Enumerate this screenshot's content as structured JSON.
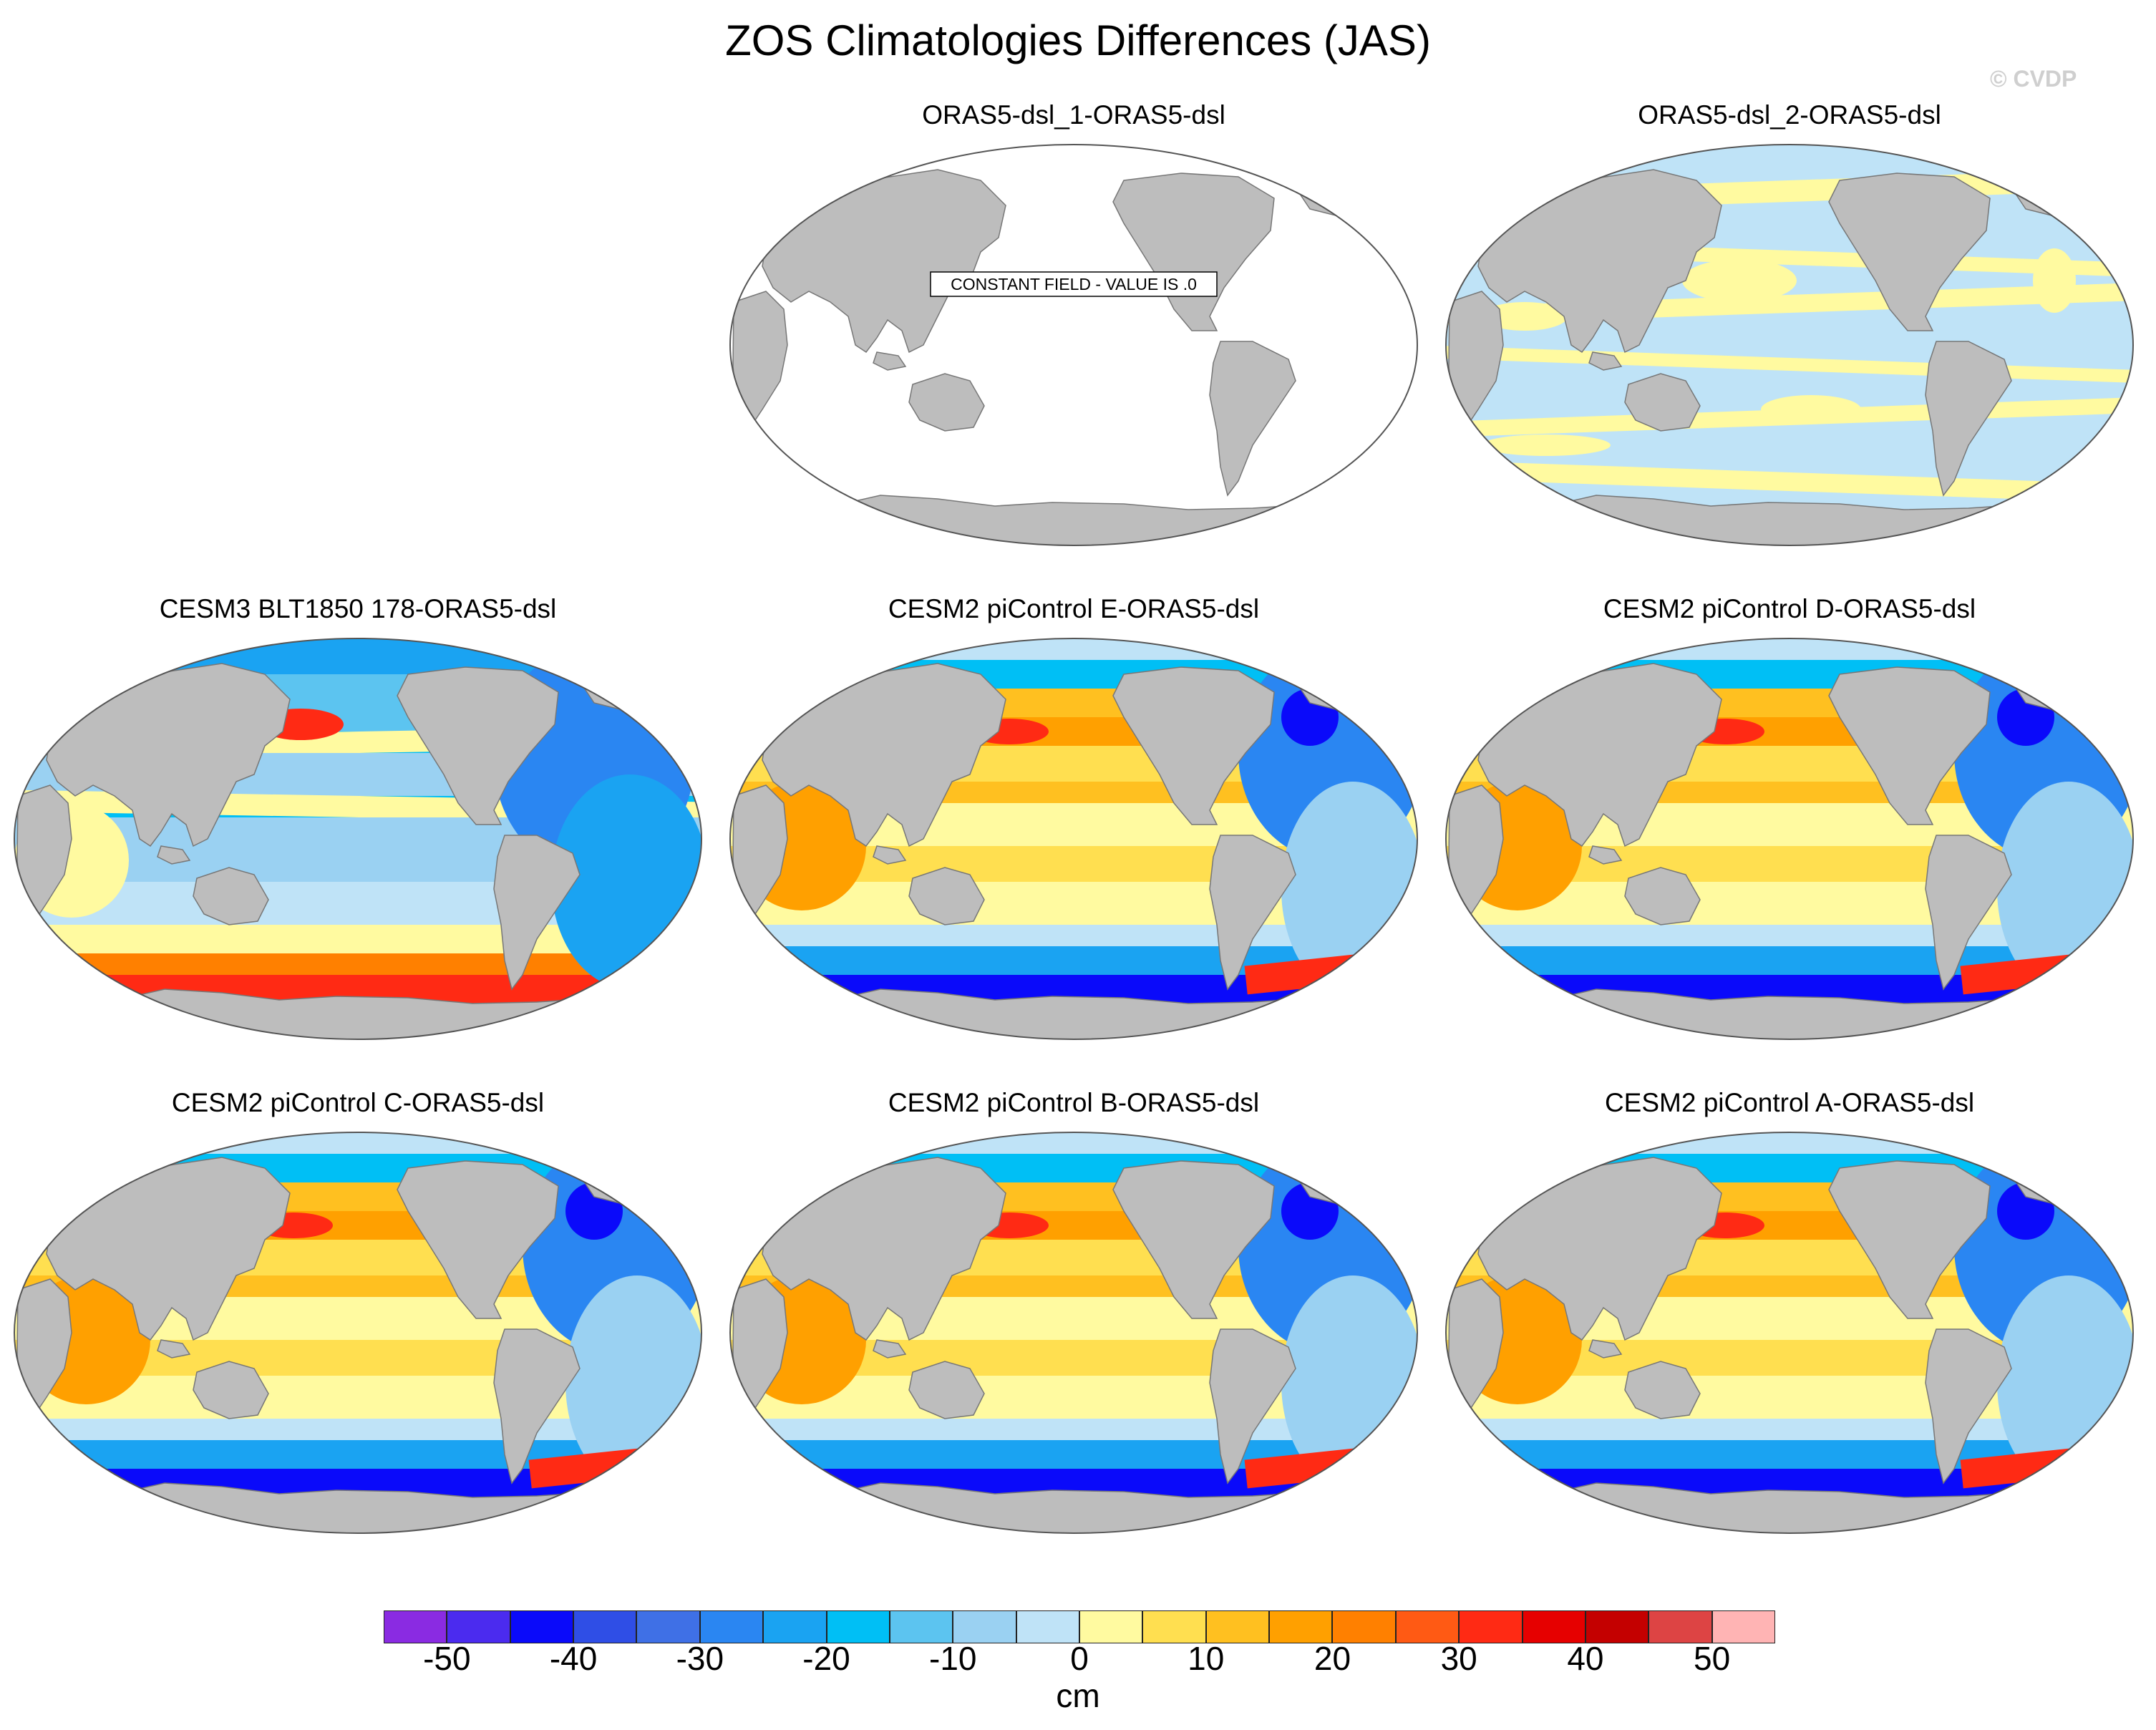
{
  "title": "ZOS Climatologies Differences (JAS)",
  "watermark": "© CVDP",
  "colors": {
    "land": "#bdbdbd",
    "ocean_constant": "#ffffff",
    "outline": "#555555"
  },
  "panels": [
    {
      "title": "ORAS5-dsl_1-ORAS5-dsl",
      "row": 0,
      "col": 1,
      "style": "constant",
      "note": "CONSTANT FIELD - VALUE IS .0"
    },
    {
      "title": "ORAS5-dsl_2-ORAS5-dsl",
      "row": 0,
      "col": 2,
      "style": "small"
    },
    {
      "title": "CESM3 BLT1850 178-ORAS5-dsl",
      "row": 1,
      "col": 0,
      "style": "cesm3"
    },
    {
      "title": "CESM2 piControl E-ORAS5-dsl",
      "row": 1,
      "col": 1,
      "style": "cesm2"
    },
    {
      "title": "CESM2 piControl D-ORAS5-dsl",
      "row": 1,
      "col": 2,
      "style": "cesm2"
    },
    {
      "title": "CESM2 piControl C-ORAS5-dsl",
      "row": 2,
      "col": 0,
      "style": "cesm2"
    },
    {
      "title": "CESM2 piControl B-ORAS5-dsl",
      "row": 2,
      "col": 1,
      "style": "cesm2"
    },
    {
      "title": "CESM2 piControl A-ORAS5-dsl",
      "row": 2,
      "col": 2,
      "style": "cesm2"
    }
  ],
  "colorbar": {
    "unit": "cm",
    "tick_labels": [
      "-50",
      "-40",
      "-30",
      "-20",
      "-10",
      "0",
      "10",
      "20",
      "30",
      "40",
      "50"
    ],
    "colors": [
      "#8a2be2",
      "#4b2bef",
      "#0a0afa",
      "#2f4ee6",
      "#3f70e6",
      "#2a86f2",
      "#1aa3f2",
      "#00bff5",
      "#5cc4f0",
      "#9ad1f2",
      "#bfe3f7",
      "#fffaa0",
      "#ffdf50",
      "#ffc020",
      "#ffa000",
      "#ff8000",
      "#ff5a14",
      "#ff2a14",
      "#e60000",
      "#c40000",
      "#dd4444",
      "#ffb4b4"
    ]
  }
}
